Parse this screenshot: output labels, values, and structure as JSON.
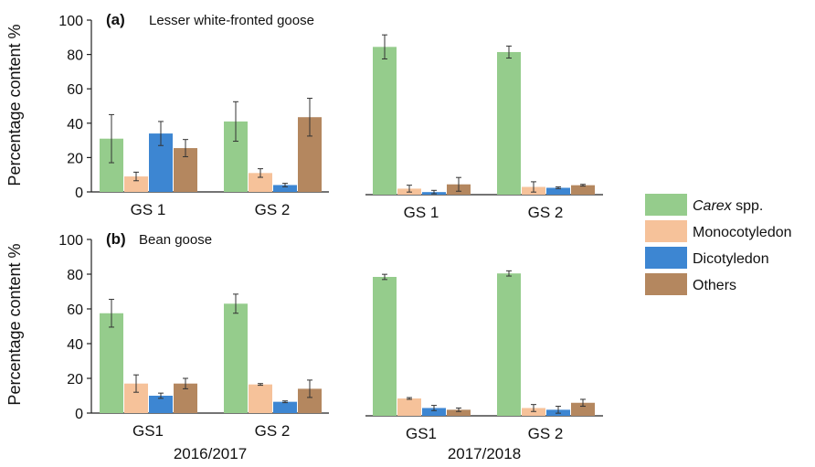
{
  "legend": {
    "position": "right",
    "items": [
      {
        "key": "carex",
        "label_italic": "Carex",
        "label_rest": " spp.",
        "color": "#95cc8c"
      },
      {
        "key": "mono",
        "label_italic": "",
        "label_rest": "Monocotyledon",
        "color": "#f6c29a"
      },
      {
        "key": "dico",
        "label_italic": "",
        "label_rest": "Dicotyledon",
        "color": "#3d86d2"
      },
      {
        "key": "others",
        "label_italic": "",
        "label_rest": "Others",
        "color": "#b4875f"
      }
    ]
  },
  "season_labels": [
    "2016/2017",
    "2017/2018"
  ],
  "chart_data": [
    {
      "type": "bar",
      "panel_label": "(a)",
      "title": "Lesser white-fronted goose",
      "ylabel": "Percentage content %",
      "ylim": [
        0,
        100
      ],
      "yticks": [
        0,
        20,
        40,
        60,
        80,
        100
      ],
      "categories": [
        "GS 1",
        "GS 2",
        "GS 1",
        "GS 2"
      ],
      "series": [
        {
          "name": "Carex spp.",
          "values": [
            31,
            41,
            86,
            83
          ],
          "errors": [
            14,
            11.5,
            7,
            3.5
          ]
        },
        {
          "name": "Monocotyledon",
          "values": [
            9,
            11,
            3.5,
            4.5
          ],
          "errors": [
            2.5,
            2.5,
            2,
            3
          ]
        },
        {
          "name": "Dicotyledon",
          "values": [
            34,
            4,
            1.5,
            4
          ],
          "errors": [
            7,
            1,
            1,
            0.5
          ]
        },
        {
          "name": "Others",
          "values": [
            25.5,
            43.5,
            6,
            5.5
          ],
          "errors": [
            5,
            11,
            4,
            0.5
          ]
        }
      ]
    },
    {
      "type": "bar",
      "panel_label": "(b)",
      "title": "Bean goose",
      "ylabel": "Percentage content %",
      "ylim": [
        0,
        100
      ],
      "yticks": [
        0,
        20,
        40,
        60,
        80,
        100
      ],
      "categories": [
        "GS1",
        "GS 2",
        "GS1",
        "GS 2"
      ],
      "series": [
        {
          "name": "Carex spp.",
          "values": [
            57.5,
            63,
            80,
            82
          ],
          "errors": [
            8,
            5.5,
            1.5,
            1.5
          ]
        },
        {
          "name": "Monocotyledon",
          "values": [
            17,
            16.5,
            10,
            4.5
          ],
          "errors": [
            5,
            0.5,
            0.5,
            2
          ]
        },
        {
          "name": "Dicotyledon",
          "values": [
            10,
            6.5,
            4.5,
            3.5
          ],
          "errors": [
            1.5,
            0.5,
            1.5,
            2
          ]
        },
        {
          "name": "Others",
          "values": [
            17,
            14,
            3.5,
            7.5
          ],
          "errors": [
            3,
            5,
            1,
            2
          ]
        }
      ]
    }
  ]
}
